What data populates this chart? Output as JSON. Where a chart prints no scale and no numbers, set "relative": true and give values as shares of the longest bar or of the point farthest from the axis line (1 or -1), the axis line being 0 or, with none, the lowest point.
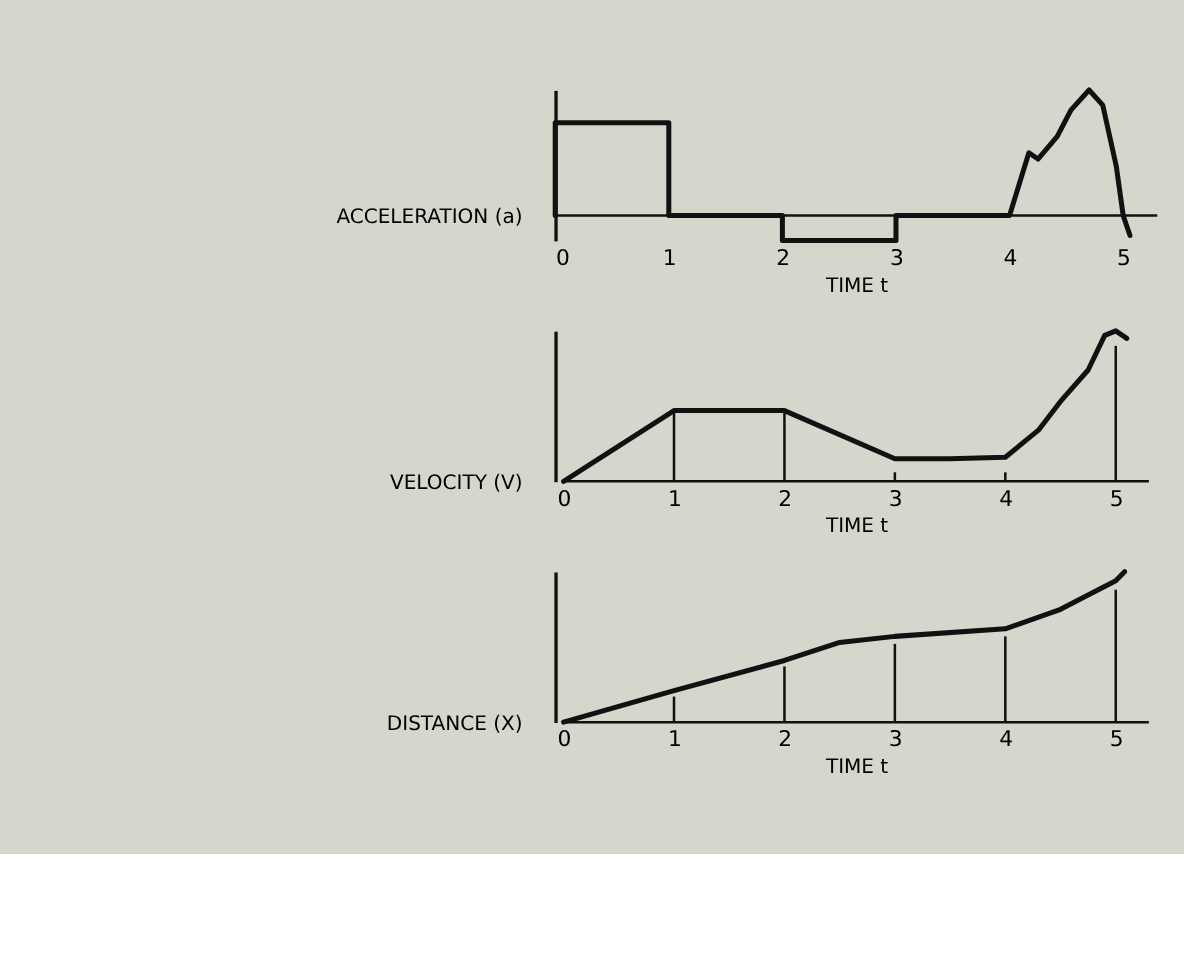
{
  "chart_data": [
    {
      "type": "line",
      "relative": true,
      "ylabel": "ACCELERATION (a)",
      "xlabel": "TIME t",
      "xlim": [
        0,
        5.3
      ],
      "xticks": [
        0,
        1,
        2,
        3,
        4,
        5
      ],
      "grid": false,
      "series": [
        {
          "color": "#111111",
          "x": [
            0,
            0,
            1,
            1,
            2,
            2,
            3,
            3,
            4,
            4.17,
            4.25,
            4.42,
            4.54,
            4.7,
            4.82,
            4.94,
            5.0,
            5.06
          ],
          "values": [
            0,
            0.74,
            0.74,
            0,
            0,
            -0.2,
            -0.2,
            0,
            0,
            0.5,
            0.45,
            0.63,
            0.84,
            1,
            0.88,
            0.39,
            0,
            -0.16
          ]
        }
      ]
    },
    {
      "type": "line",
      "relative": true,
      "ylabel": "VELOCITY (V)",
      "xlabel": "TIME t",
      "xlim": [
        0,
        5.3
      ],
      "xticks": [
        0,
        1,
        2,
        3,
        4,
        5
      ],
      "grid": false,
      "series": [
        {
          "color": "#111111",
          "x": [
            0,
            1,
            2,
            3,
            3.5,
            4,
            4.3,
            4.51,
            4.75,
            4.9,
            5.0,
            5.1
          ],
          "values": [
            0,
            0.47,
            0.47,
            0.15,
            0.15,
            0.16,
            0.34,
            0.54,
            0.74,
            0.97,
            1,
            0.95
          ]
        },
        {
          "type": "bar",
          "color": "#111111",
          "x": [
            1,
            2,
            3,
            4,
            5
          ],
          "values": [
            0.47,
            0.47,
            0.06,
            0.06,
            0.9
          ]
        }
      ]
    },
    {
      "type": "line",
      "relative": true,
      "ylabel": "DISTANCE (X)",
      "xlabel": "TIME t",
      "xlim": [
        0,
        5.3
      ],
      "xticks": [
        0,
        1,
        2,
        3,
        4,
        5
      ],
      "grid": false,
      "series": [
        {
          "color": "#111111",
          "x": [
            0,
            1,
            2,
            2.5,
            3,
            4,
            4.5,
            5,
            5.08
          ],
          "values": [
            0,
            0.21,
            0.41,
            0.53,
            0.57,
            0.62,
            0.75,
            0.94,
            1
          ]
        },
        {
          "type": "bar",
          "color": "#111111",
          "x": [
            1,
            2,
            3,
            4,
            5
          ],
          "values": [
            0.17,
            0.37,
            0.52,
            0.57,
            0.88
          ]
        }
      ]
    }
  ]
}
